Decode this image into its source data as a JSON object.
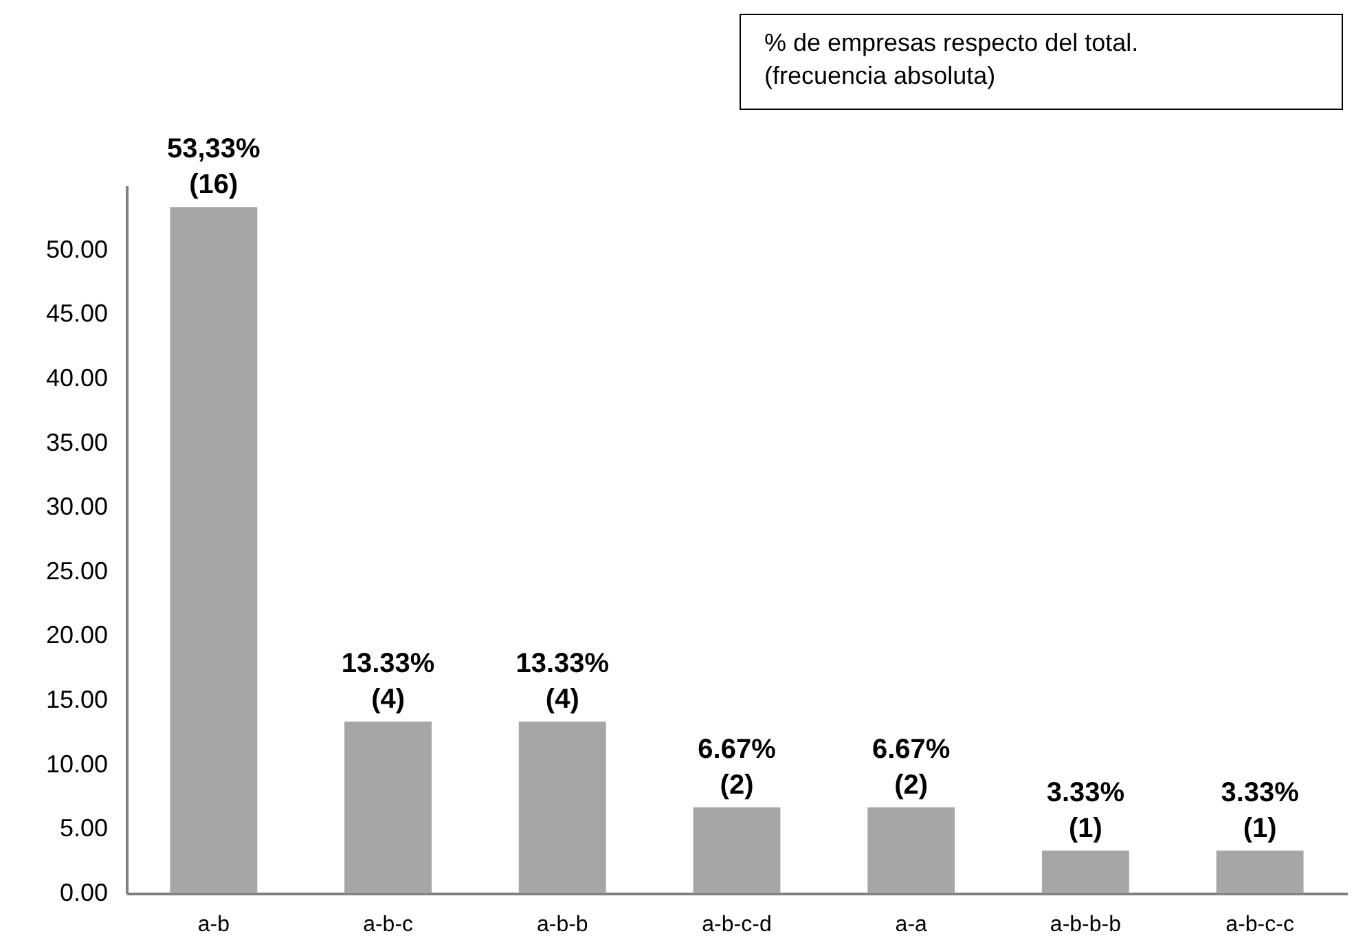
{
  "chart_data": {
    "type": "bar",
    "categories": [
      "a-b",
      "a-b-c",
      "a-b-b",
      "a-b-c-d",
      "a-a",
      "a-b-b-b",
      "a-b-c-c"
    ],
    "values": [
      53.33,
      13.33,
      13.33,
      6.67,
      6.67,
      3.33,
      3.33
    ],
    "value_labels": [
      "53,33%\n(16)",
      "13.33%\n(4)",
      "13.33%\n(4)",
      "6.67%\n(2)",
      "6.67%\n(2)",
      "3.33%\n(1)",
      "3.33%\n(1)"
    ],
    "color": "#a6a6a6",
    "ylim": [
      0,
      55
    ],
    "yticks": [
      {
        "value": 0,
        "label": "0.00"
      },
      {
        "value": 5,
        "label": "5.00"
      },
      {
        "value": 10,
        "label": "10.00"
      },
      {
        "value": 15,
        "label": "15.00"
      },
      {
        "value": 20,
        "label": "20.00"
      },
      {
        "value": 25,
        "label": "25.00"
      },
      {
        "value": 30,
        "label": "30.00"
      },
      {
        "value": 35,
        "label": "35.00"
      },
      {
        "value": 40,
        "label": "40.00"
      },
      {
        "value": 45,
        "label": "45.00"
      },
      {
        "value": 50,
        "label": "50.00"
      }
    ],
    "annotations": [
      "% de empresas respecto del total.",
      "(frecuencia absoluta)"
    ]
  }
}
